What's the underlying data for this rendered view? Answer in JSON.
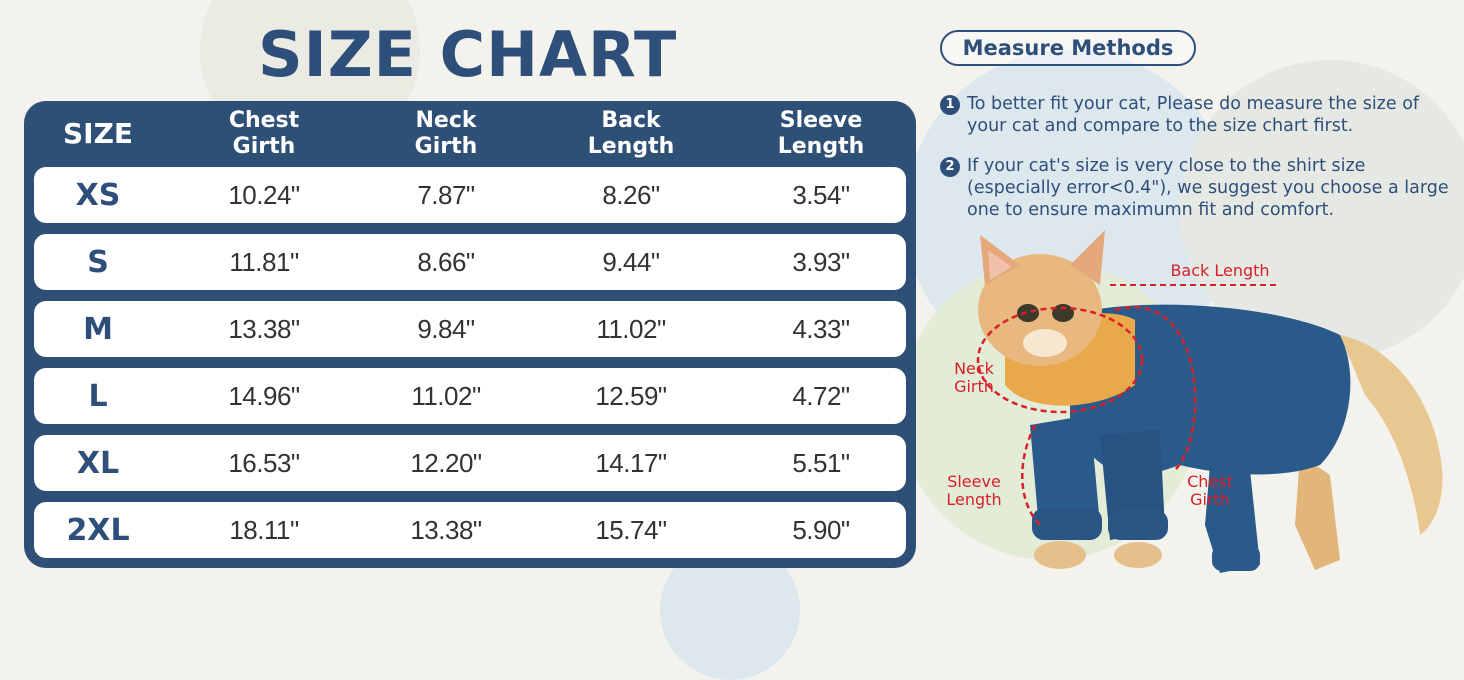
{
  "title": "SIZE CHART",
  "table": {
    "headers": [
      "SIZE",
      "Chest Girth",
      "Neck Girth",
      "Back Length",
      "Sleeve Length"
    ],
    "header_lines": [
      [
        "SIZE"
      ],
      [
        "Chest",
        "Girth"
      ],
      [
        "Neck",
        "Girth"
      ],
      [
        "Back",
        "Length"
      ],
      [
        "Sleeve",
        "Length"
      ]
    ],
    "rows": [
      {
        "size": "XS",
        "chest": "10.24\"",
        "neck": "7.87\"",
        "back": "8.26\"",
        "sleeve": "3.54\""
      },
      {
        "size": "S",
        "chest": "11.81\"",
        "neck": "8.66\"",
        "back": "9.44\"",
        "sleeve": "3.93\""
      },
      {
        "size": "M",
        "chest": "13.38\"",
        "neck": "9.84\"",
        "back": "11.02\"",
        "sleeve": "4.33\""
      },
      {
        "size": "L",
        "chest": "14.96\"",
        "neck": "11.02\"",
        "back": "12.59\"",
        "sleeve": "4.72\""
      },
      {
        "size": "XL",
        "chest": "16.53\"",
        "neck": "12.20\"",
        "back": "14.17\"",
        "sleeve": "5.51\""
      },
      {
        "size": "2XL",
        "chest": "18.11\"",
        "neck": "13.38\"",
        "back": "15.74\"",
        "sleeve": "5.90\""
      }
    ]
  },
  "measure": {
    "heading": "Measure Methods",
    "notes": [
      {
        "num": "1",
        "text": "To better fit your cat, Please do measure the size of your cat and compare to the size chart first."
      },
      {
        "num": "2",
        "text": "If your cat's size is very close to the shirt size (especially error<0.4\"), we suggest you choose a large one to ensure maximumn fit and comfort."
      }
    ]
  },
  "diagram": {
    "back_length": "Back Length",
    "neck_girth": [
      "Neck",
      "Girth"
    ],
    "sleeve_length": [
      "Sleeve",
      "Length"
    ],
    "chest_girth": [
      "Chest",
      "Girth"
    ]
  },
  "colors": {
    "navy": "#2f5076",
    "title": "#2e4f7a",
    "measure_red": "#d8202a",
    "garment_blue": "#2a5a8a",
    "collar_orange": "#e9a94a"
  }
}
